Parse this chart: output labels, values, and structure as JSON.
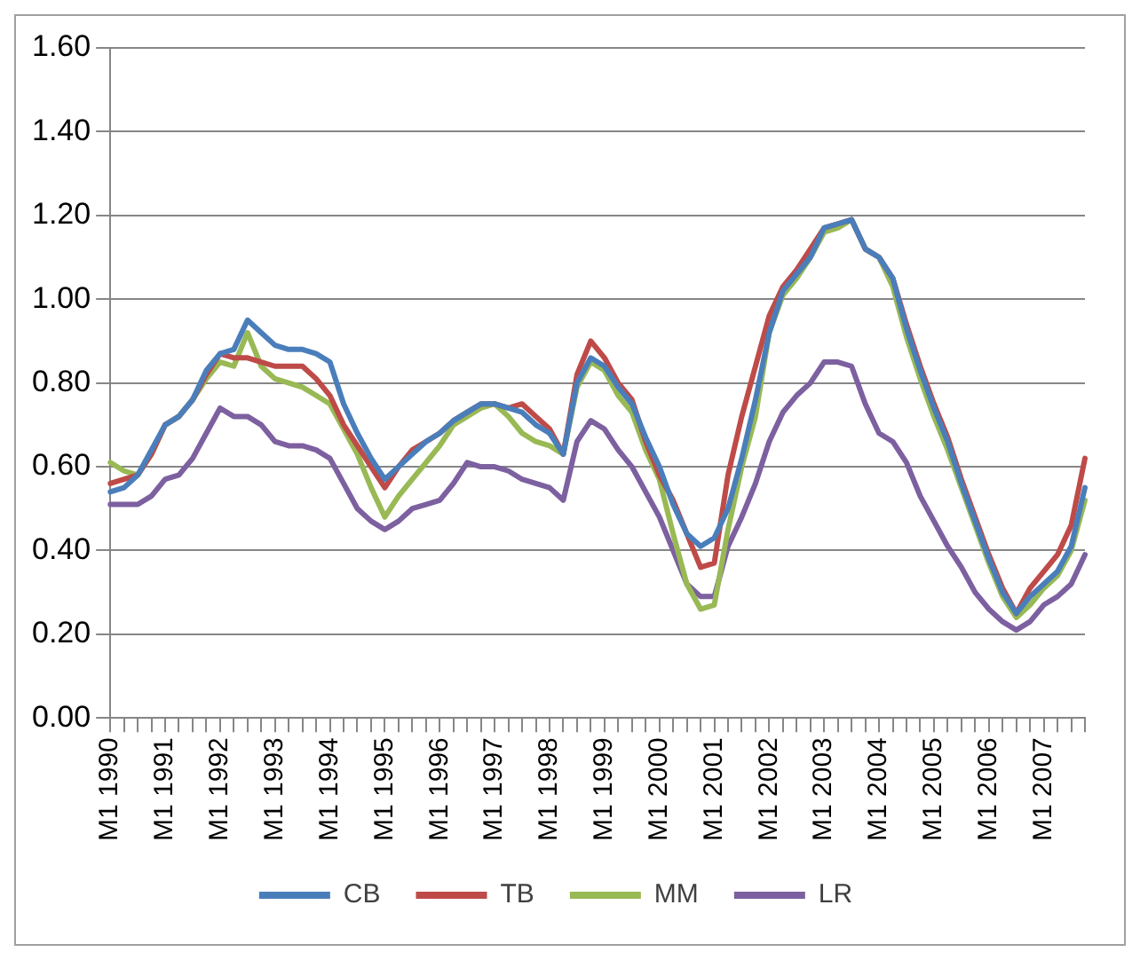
{
  "chart_data": {
    "type": "line",
    "categories": [
      "M1 1990",
      null,
      null,
      null,
      "M1 1991",
      null,
      null,
      null,
      "M1 1992",
      null,
      null,
      null,
      "M1 1993",
      null,
      null,
      null,
      "M1 1994",
      null,
      null,
      null,
      "M1 1995",
      null,
      null,
      null,
      "M1 1996",
      null,
      null,
      null,
      "M1 1997",
      null,
      null,
      null,
      "M1 1998",
      null,
      null,
      null,
      "M1 1999",
      null,
      null,
      null,
      "M1 2000",
      null,
      null,
      null,
      "M1 2001",
      null,
      null,
      null,
      "M1 2002",
      null,
      null,
      null,
      "M1 2003",
      null,
      null,
      null,
      "M1 2004",
      null,
      null,
      null,
      "M1 2005",
      null,
      null,
      null,
      "M1 2006",
      null,
      null,
      null,
      "M1 2007",
      null,
      null,
      null
    ],
    "series": [
      {
        "name": "CB",
        "color": "#4a7ebb",
        "values": [
          0.54,
          0.55,
          0.58,
          0.64,
          0.7,
          0.72,
          0.76,
          0.83,
          0.87,
          0.88,
          0.95,
          0.92,
          0.89,
          0.88,
          0.88,
          0.87,
          0.85,
          0.75,
          0.68,
          0.62,
          0.57,
          0.6,
          0.63,
          0.66,
          0.68,
          0.71,
          0.73,
          0.75,
          0.75,
          0.74,
          0.73,
          0.7,
          0.68,
          0.63,
          0.8,
          0.86,
          0.84,
          0.79,
          0.75,
          0.67,
          0.6,
          0.51,
          0.44,
          0.41,
          0.43,
          0.5,
          0.62,
          0.76,
          0.92,
          1.02,
          1.06,
          1.1,
          1.17,
          1.18,
          1.19,
          1.12,
          1.1,
          1.05,
          0.93,
          0.83,
          0.74,
          0.66,
          0.56,
          0.47,
          0.38,
          0.3,
          0.25,
          0.29,
          0.32,
          0.35,
          0.41,
          0.55
        ]
      },
      {
        "name": "TB",
        "color": "#be4b48",
        "values": [
          0.56,
          0.57,
          0.58,
          0.63,
          0.7,
          0.72,
          0.76,
          0.82,
          0.87,
          0.86,
          0.86,
          0.85,
          0.84,
          0.84,
          0.84,
          0.81,
          0.77,
          0.7,
          0.65,
          0.6,
          0.55,
          0.6,
          0.64,
          0.66,
          0.68,
          0.71,
          0.73,
          0.75,
          0.75,
          0.74,
          0.75,
          0.72,
          0.69,
          0.63,
          0.82,
          0.9,
          0.86,
          0.8,
          0.76,
          0.66,
          0.58,
          0.52,
          0.44,
          0.36,
          0.37,
          0.58,
          0.72,
          0.84,
          0.96,
          1.03,
          1.07,
          1.12,
          1.17,
          1.18,
          1.19,
          1.12,
          1.1,
          1.05,
          0.94,
          0.84,
          0.75,
          0.67,
          0.57,
          0.48,
          0.39,
          0.31,
          0.25,
          0.31,
          0.35,
          0.39,
          0.46,
          0.62
        ]
      },
      {
        "name": "MM",
        "color": "#98b954",
        "values": [
          0.61,
          0.59,
          0.58,
          0.63,
          0.7,
          0.72,
          0.76,
          0.81,
          0.85,
          0.84,
          0.92,
          0.84,
          0.81,
          0.8,
          0.79,
          0.77,
          0.75,
          0.69,
          0.63,
          0.55,
          0.48,
          0.53,
          0.57,
          0.61,
          0.65,
          0.7,
          0.72,
          0.74,
          0.75,
          0.72,
          0.68,
          0.66,
          0.65,
          0.63,
          0.79,
          0.85,
          0.83,
          0.77,
          0.73,
          0.64,
          0.57,
          0.44,
          0.32,
          0.26,
          0.27,
          0.45,
          0.6,
          0.72,
          0.92,
          1.01,
          1.05,
          1.1,
          1.16,
          1.17,
          1.19,
          1.12,
          1.1,
          1.03,
          0.91,
          0.81,
          0.72,
          0.64,
          0.55,
          0.46,
          0.37,
          0.29,
          0.24,
          0.27,
          0.31,
          0.34,
          0.4,
          0.52
        ]
      },
      {
        "name": "LR",
        "color": "#7d60a0",
        "values": [
          0.51,
          0.51,
          0.51,
          0.53,
          0.57,
          0.58,
          0.62,
          0.68,
          0.74,
          0.72,
          0.72,
          0.7,
          0.66,
          0.65,
          0.65,
          0.64,
          0.62,
          0.56,
          0.5,
          0.47,
          0.45,
          0.47,
          0.5,
          0.51,
          0.52,
          0.56,
          0.61,
          0.6,
          0.6,
          0.59,
          0.57,
          0.56,
          0.55,
          0.52,
          0.66,
          0.71,
          0.69,
          0.64,
          0.6,
          0.54,
          0.48,
          0.4,
          0.32,
          0.29,
          0.29,
          0.41,
          0.48,
          0.56,
          0.66,
          0.73,
          0.77,
          0.8,
          0.85,
          0.85,
          0.84,
          0.75,
          0.68,
          0.66,
          0.61,
          0.53,
          0.47,
          0.41,
          0.36,
          0.3,
          0.26,
          0.23,
          0.21,
          0.23,
          0.27,
          0.29,
          0.32,
          0.39
        ]
      }
    ],
    "ylim": [
      0,
      1.6
    ],
    "yticks": [
      {
        "value": 0,
        "label": "0.00"
      },
      {
        "value": 0.2,
        "label": "0.20"
      },
      {
        "value": 0.4,
        "label": "0.40"
      },
      {
        "value": 0.6,
        "label": "0.60"
      },
      {
        "value": 0.8,
        "label": "0.80"
      },
      {
        "value": 1,
        "label": "1.00"
      },
      {
        "value": 1.2,
        "label": "1.20"
      },
      {
        "value": 1.4,
        "label": "1.40"
      },
      {
        "value": 1.6,
        "label": "1.60"
      }
    ],
    "grid": "y",
    "legend": "bottom",
    "marker": "none",
    "line_style": "solid"
  }
}
